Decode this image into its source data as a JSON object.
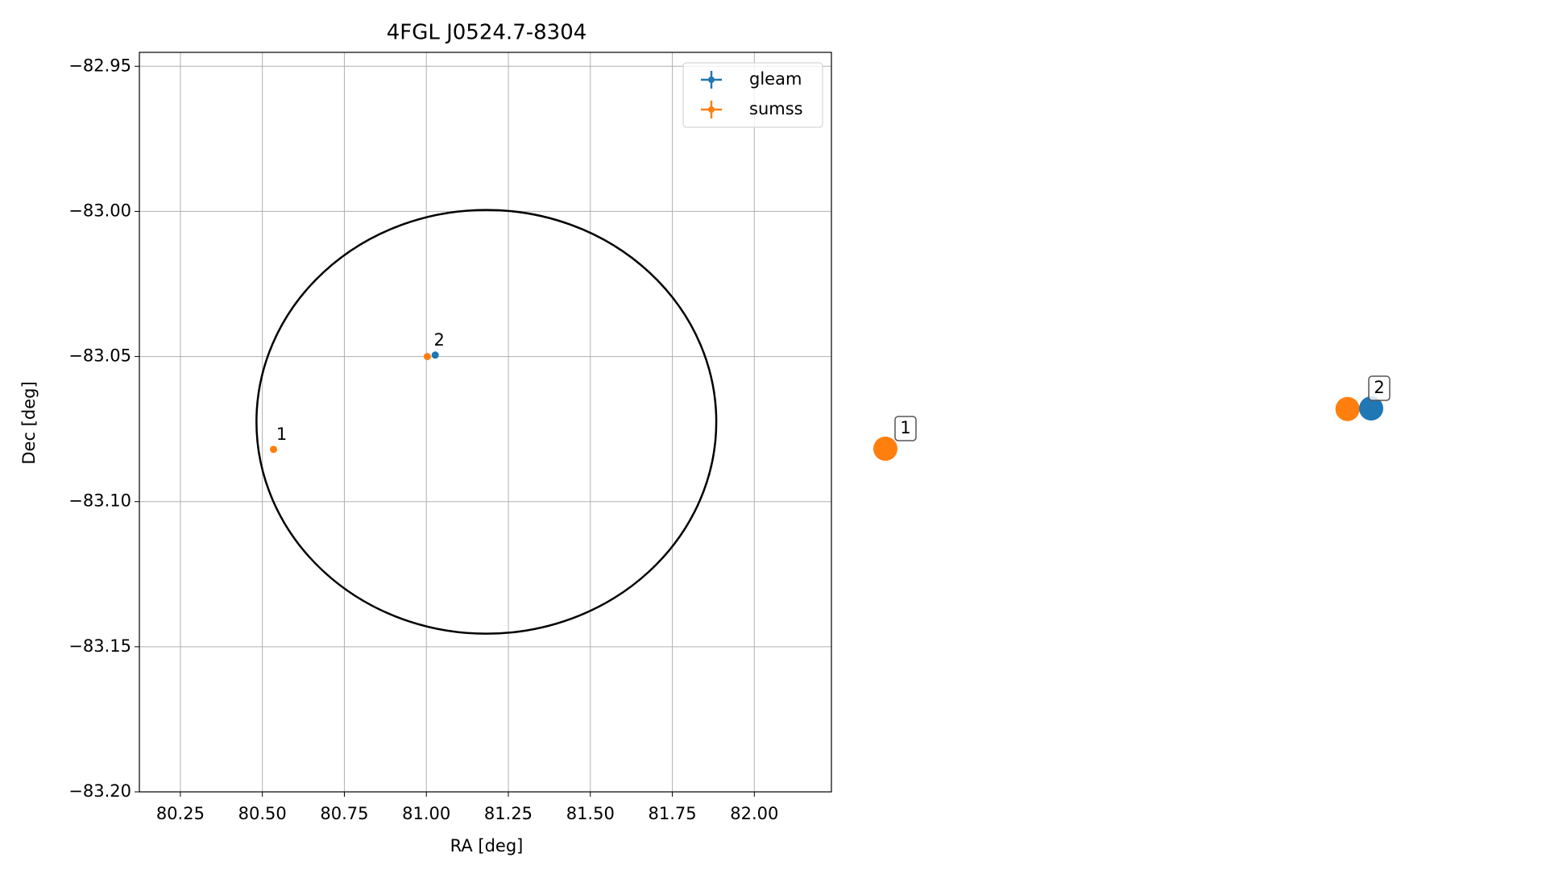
{
  "chart_data": {
    "type": "scatter",
    "title": "4FGL J0524.7-8304",
    "x_label": "RA [deg]",
    "y_label": "Dec [deg]",
    "series": [
      {
        "name": "gleam",
        "color": "#1f77b4",
        "x": [
          81.027
        ],
        "values": [
          -83.0495
        ]
      },
      {
        "name": "sumss",
        "color": "#ff7f0e",
        "x": [
          80.534,
          81.003
        ],
        "values": [
          -83.082,
          -83.05
        ]
      }
    ],
    "annotations": [
      {
        "text": "1"
      },
      {
        "text": "2"
      }
    ],
    "ellipse": {
      "center": [
        81.183,
        -83.0725
      ],
      "width": 1.402,
      "height": 0.146,
      "color": "#000000"
    },
    "xlim": [
      80.125,
      82.235
    ],
    "ylim": [
      -83.2,
      -82.9452
    ],
    "xticks": [
      {
        "value": 80.25,
        "label": "80.25"
      },
      {
        "value": 80.5,
        "label": "80.50"
      },
      {
        "value": 80.75,
        "label": "80.75"
      },
      {
        "value": 81.0,
        "label": "81.00"
      },
      {
        "value": 81.25,
        "label": "81.25"
      },
      {
        "value": 81.5,
        "label": "81.50"
      },
      {
        "value": 81.75,
        "label": "81.75"
      },
      {
        "value": 82.0,
        "label": "82.00"
      }
    ],
    "yticks": [
      {
        "value": -82.95,
        "label": "−82.95"
      },
      {
        "value": -83.0,
        "label": "−83.00"
      },
      {
        "value": -83.05,
        "label": "−83.05"
      },
      {
        "value": -83.1,
        "label": "−83.10"
      },
      {
        "value": -83.15,
        "label": "−83.15"
      },
      {
        "value": -83.2,
        "label": "−83.20"
      }
    ],
    "grid": true,
    "legend": "upper right"
  }
}
